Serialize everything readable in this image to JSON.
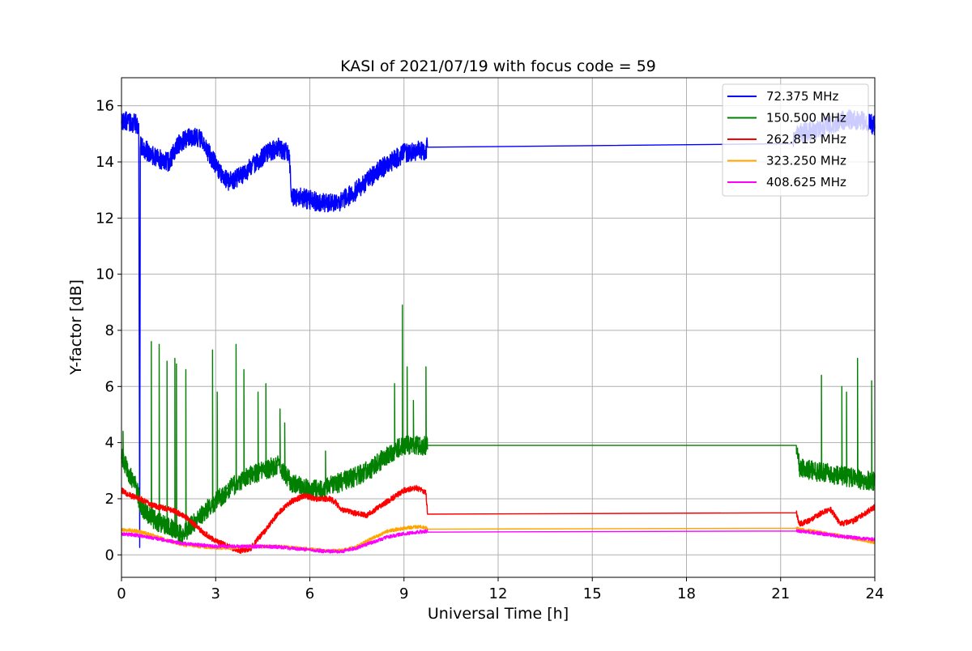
{
  "chart_data": {
    "type": "line",
    "title": "KASI of 2021/07/19 with focus code = 59",
    "xlabel": "Universal Time [h]",
    "ylabel": "Y-factor [dB]",
    "xlim": [
      0,
      24
    ],
    "ylim": [
      -0.8,
      17
    ],
    "xticks": [
      0,
      3,
      6,
      9,
      12,
      15,
      18,
      21,
      24
    ],
    "yticks": [
      0,
      2,
      4,
      6,
      8,
      10,
      12,
      14,
      16
    ],
    "grid": true,
    "legend_position": "top-right",
    "series": [
      {
        "name": " 72.375 MHz",
        "color": "#0000ff",
        "noise": 0.35,
        "points": [
          [
            0,
            15.5
          ],
          [
            0.3,
            15.4
          ],
          [
            0.55,
            15.3
          ],
          [
            0.58,
            0.0
          ],
          [
            0.6,
            14.6
          ],
          [
            0.9,
            14.3
          ],
          [
            1.2,
            14.1
          ],
          [
            1.5,
            14.0
          ],
          [
            1.8,
            14.6
          ],
          [
            2.2,
            14.9
          ],
          [
            2.5,
            14.8
          ],
          [
            2.8,
            14.3
          ],
          [
            3.1,
            13.7
          ],
          [
            3.4,
            13.3
          ],
          [
            3.8,
            13.5
          ],
          [
            4.2,
            13.9
          ],
          [
            4.6,
            14.3
          ],
          [
            5.0,
            14.5
          ],
          [
            5.35,
            14.3
          ],
          [
            5.4,
            12.8
          ],
          [
            5.8,
            12.7
          ],
          [
            6.2,
            12.6
          ],
          [
            6.6,
            12.5
          ],
          [
            7.0,
            12.6
          ],
          [
            7.4,
            12.9
          ],
          [
            7.8,
            13.3
          ],
          [
            8.2,
            13.7
          ],
          [
            8.6,
            14.0
          ],
          [
            9.0,
            14.3
          ],
          [
            9.4,
            14.4
          ],
          [
            9.7,
            14.4
          ],
          [
            9.75,
            14.65
          ],
          [
            21.4,
            14.65
          ],
          [
            21.5,
            15.0
          ],
          [
            22.0,
            15.1
          ],
          [
            22.5,
            15.3
          ],
          [
            23.0,
            15.5
          ],
          [
            23.5,
            15.5
          ],
          [
            24,
            15.3
          ]
        ]
      },
      {
        "name": " 150.500 MHz",
        "color": "#008000",
        "noise": 0.35,
        "spikes": [
          [
            0.05,
            4.4
          ],
          [
            0.95,
            7.6
          ],
          [
            1.2,
            7.5
          ],
          [
            1.45,
            6.9
          ],
          [
            1.7,
            7.0
          ],
          [
            1.75,
            6.8
          ],
          [
            2.05,
            6.6
          ],
          [
            2.9,
            7.3
          ],
          [
            3.05,
            5.8
          ],
          [
            3.65,
            7.5
          ],
          [
            3.9,
            6.6
          ],
          [
            4.35,
            5.8
          ],
          [
            4.6,
            6.1
          ],
          [
            5.05,
            5.2
          ],
          [
            5.2,
            4.7
          ],
          [
            6.5,
            3.7
          ],
          [
            8.7,
            6.1
          ],
          [
            8.95,
            8.9
          ],
          [
            9.1,
            6.7
          ],
          [
            9.3,
            5.5
          ],
          [
            9.7,
            6.7
          ],
          [
            22.3,
            6.4
          ],
          [
            22.95,
            6.0
          ],
          [
            23.1,
            5.8
          ],
          [
            23.45,
            7.0
          ],
          [
            23.9,
            6.2
          ]
        ],
        "points": [
          [
            0,
            3.5
          ],
          [
            0.2,
            3.0
          ],
          [
            0.45,
            2.5
          ],
          [
            0.6,
            1.8
          ],
          [
            0.8,
            1.5
          ],
          [
            1.1,
            1.2
          ],
          [
            1.5,
            1.0
          ],
          [
            1.9,
            0.7
          ],
          [
            2.2,
            1.0
          ],
          [
            2.5,
            1.4
          ],
          [
            3.0,
            1.9
          ],
          [
            3.5,
            2.4
          ],
          [
            4.0,
            2.8
          ],
          [
            4.5,
            3.0
          ],
          [
            5.0,
            3.2
          ],
          [
            5.4,
            2.6
          ],
          [
            6.0,
            2.3
          ],
          [
            6.5,
            2.4
          ],
          [
            7.0,
            2.6
          ],
          [
            7.5,
            2.8
          ],
          [
            8.0,
            3.1
          ],
          [
            8.5,
            3.6
          ],
          [
            9.0,
            3.9
          ],
          [
            9.5,
            3.9
          ],
          [
            9.75,
            3.9
          ],
          [
            21.5,
            3.9
          ],
          [
            21.6,
            3.1
          ],
          [
            22.0,
            3.0
          ],
          [
            22.5,
            2.9
          ],
          [
            23.0,
            2.8
          ],
          [
            23.5,
            2.7
          ],
          [
            24,
            2.6
          ]
        ]
      },
      {
        "name": " 262.813 MHz",
        "color": "#ff0000",
        "noise": 0.1,
        "points": [
          [
            0,
            2.3
          ],
          [
            0.3,
            2.1
          ],
          [
            0.6,
            2.0
          ],
          [
            0.9,
            1.8
          ],
          [
            1.2,
            1.7
          ],
          [
            1.6,
            1.6
          ],
          [
            2.0,
            1.4
          ],
          [
            2.3,
            1.1
          ],
          [
            2.6,
            0.8
          ],
          [
            3.0,
            0.5
          ],
          [
            3.4,
            0.3
          ],
          [
            3.8,
            0.15
          ],
          [
            4.1,
            0.2
          ],
          [
            4.3,
            0.5
          ],
          [
            4.6,
            0.9
          ],
          [
            5.0,
            1.5
          ],
          [
            5.4,
            1.9
          ],
          [
            5.8,
            2.1
          ],
          [
            6.2,
            2.0
          ],
          [
            6.6,
            2.0
          ],
          [
            6.8,
            1.9
          ],
          [
            7.0,
            1.6
          ],
          [
            7.4,
            1.5
          ],
          [
            7.8,
            1.4
          ],
          [
            8.2,
            1.7
          ],
          [
            8.6,
            2.0
          ],
          [
            9.0,
            2.3
          ],
          [
            9.4,
            2.4
          ],
          [
            9.7,
            2.2
          ],
          [
            9.75,
            1.5
          ],
          [
            21.5,
            1.5
          ],
          [
            21.6,
            1.1
          ],
          [
            21.9,
            1.2
          ],
          [
            22.3,
            1.5
          ],
          [
            22.6,
            1.6
          ],
          [
            22.9,
            1.1
          ],
          [
            23.3,
            1.2
          ],
          [
            23.7,
            1.5
          ],
          [
            24,
            1.7
          ]
        ]
      },
      {
        "name": " 323.250 MHz",
        "color": "#ffa500",
        "noise": 0.06,
        "points": [
          [
            0,
            0.9
          ],
          [
            0.5,
            0.85
          ],
          [
            1.0,
            0.7
          ],
          [
            1.5,
            0.5
          ],
          [
            2.0,
            0.35
          ],
          [
            2.5,
            0.3
          ],
          [
            3.0,
            0.25
          ],
          [
            3.5,
            0.25
          ],
          [
            4.0,
            0.3
          ],
          [
            4.5,
            0.3
          ],
          [
            5.0,
            0.3
          ],
          [
            5.5,
            0.25
          ],
          [
            6.0,
            0.2
          ],
          [
            6.5,
            0.15
          ],
          [
            7.0,
            0.15
          ],
          [
            7.5,
            0.3
          ],
          [
            8.0,
            0.6
          ],
          [
            8.5,
            0.85
          ],
          [
            9.0,
            0.95
          ],
          [
            9.5,
            1.0
          ],
          [
            9.75,
            0.95
          ],
          [
            21.5,
            0.95
          ],
          [
            21.6,
            0.9
          ],
          [
            22.0,
            0.85
          ],
          [
            22.5,
            0.75
          ],
          [
            23.0,
            0.65
          ],
          [
            23.5,
            0.55
          ],
          [
            24,
            0.45
          ]
        ]
      },
      {
        "name": " 408.625 MHz",
        "color": "#ff00ff",
        "noise": 0.06,
        "points": [
          [
            0,
            0.75
          ],
          [
            0.5,
            0.7
          ],
          [
            1.0,
            0.6
          ],
          [
            1.5,
            0.5
          ],
          [
            2.0,
            0.4
          ],
          [
            2.5,
            0.35
          ],
          [
            3.0,
            0.3
          ],
          [
            3.5,
            0.3
          ],
          [
            4.0,
            0.3
          ],
          [
            4.5,
            0.3
          ],
          [
            5.0,
            0.28
          ],
          [
            5.5,
            0.22
          ],
          [
            6.0,
            0.18
          ],
          [
            6.5,
            0.12
          ],
          [
            7.0,
            0.12
          ],
          [
            7.5,
            0.25
          ],
          [
            8.0,
            0.45
          ],
          [
            8.5,
            0.65
          ],
          [
            9.0,
            0.75
          ],
          [
            9.5,
            0.82
          ],
          [
            9.75,
            0.85
          ],
          [
            21.5,
            0.85
          ],
          [
            21.6,
            0.85
          ],
          [
            22.0,
            0.8
          ],
          [
            22.5,
            0.72
          ],
          [
            23.0,
            0.65
          ],
          [
            23.5,
            0.6
          ],
          [
            24,
            0.55
          ]
        ]
      }
    ]
  }
}
